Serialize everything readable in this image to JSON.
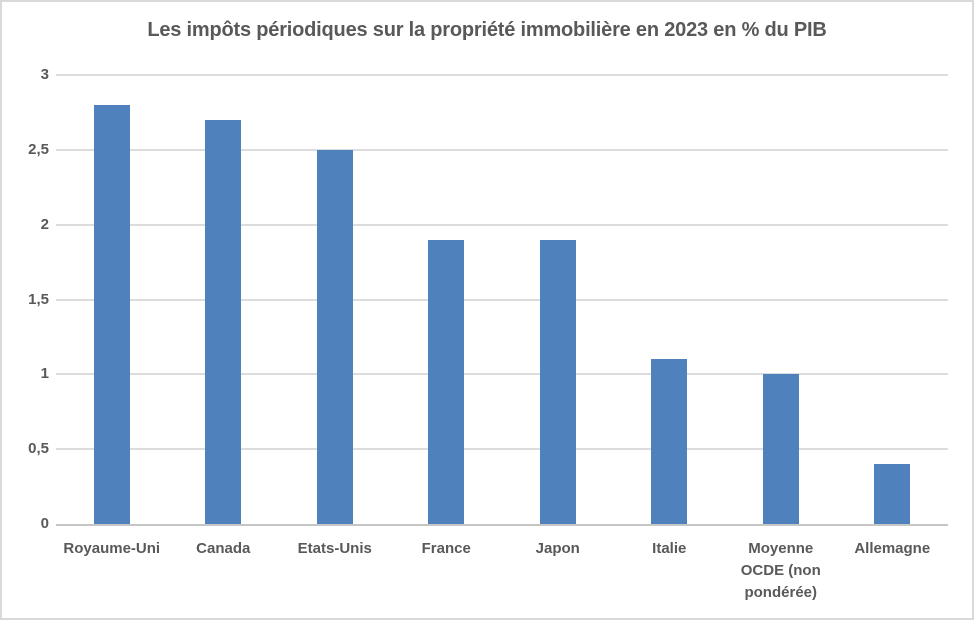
{
  "chart_data": {
    "type": "bar",
    "title": "Les impôts périodiques sur la propriété immobilière en 2023 en % du PIB",
    "categories": [
      "Royaume-Uni",
      "Canada",
      "Etats-Unis",
      "France",
      "Japon",
      "Italie",
      "Moyenne OCDE (non pondérée)",
      "Allemagne"
    ],
    "values": [
      2.8,
      2.7,
      2.5,
      1.9,
      1.9,
      1.1,
      1.0,
      0.4
    ],
    "xlabel": "",
    "ylabel": "",
    "ylim": [
      0,
      3
    ],
    "y_ticks": [
      {
        "value": 0,
        "label": "0"
      },
      {
        "value": 0.5,
        "label": "0,5"
      },
      {
        "value": 1,
        "label": "1"
      },
      {
        "value": 1.5,
        "label": "1,5"
      },
      {
        "value": 2,
        "label": "2"
      },
      {
        "value": 2.5,
        "label": "2,5"
      },
      {
        "value": 3,
        "label": "3"
      }
    ],
    "grid": true,
    "legend": "none",
    "colors": {
      "bar": "#4f81bd",
      "grid": "#dcdcdc",
      "axis": "#c6c6c6",
      "text": "#595959",
      "frame_border": "#d9d9d9",
      "background": "#ffffff"
    }
  }
}
